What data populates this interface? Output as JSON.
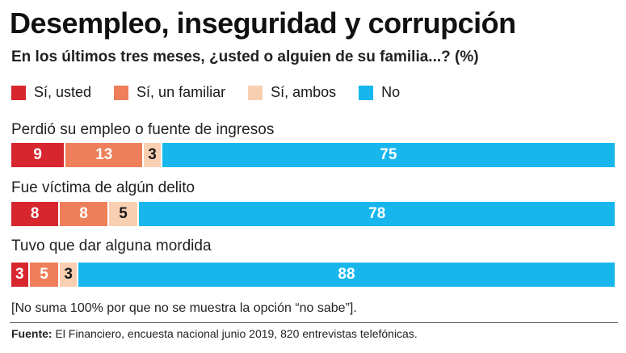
{
  "title": "Desempleo, inseguridad y corrupción",
  "subtitle": "En los últimos tres meses, ¿usted o alguien de su familia...? (%)",
  "legend": [
    {
      "label": "Sí, usted",
      "color": "#d7262e"
    },
    {
      "label": "Sí, un familiar",
      "color": "#ee7f5a"
    },
    {
      "label": "Sí, ambos",
      "color": "#f9cfb2"
    },
    {
      "label": "No",
      "color": "#17b7ee"
    }
  ],
  "chart_data": {
    "type": "bar",
    "orientation": "horizontal",
    "stacked": true,
    "categories": [
      "Perdió su empleo o fuente de ingresos",
      "Fue víctima de algún delito",
      "Tuvo que dar alguna mordida"
    ],
    "series": [
      {
        "name": "Sí, usted",
        "values": [
          9,
          8,
          3
        ]
      },
      {
        "name": "Sí, un familiar",
        "values": [
          13,
          8,
          5
        ]
      },
      {
        "name": "Sí, ambos",
        "values": [
          3,
          5,
          3
        ]
      },
      {
        "name": "No",
        "values": [
          75,
          78,
          88
        ]
      }
    ],
    "data_labels": true,
    "unit": "%"
  },
  "note": "[No suma 100% por que no se muestra la opción “no sabe”].",
  "source": {
    "label": "Fuente:",
    "text": "El Financiero, encuesta nacional junio 2019, 820 entrevistas telefónicas."
  }
}
